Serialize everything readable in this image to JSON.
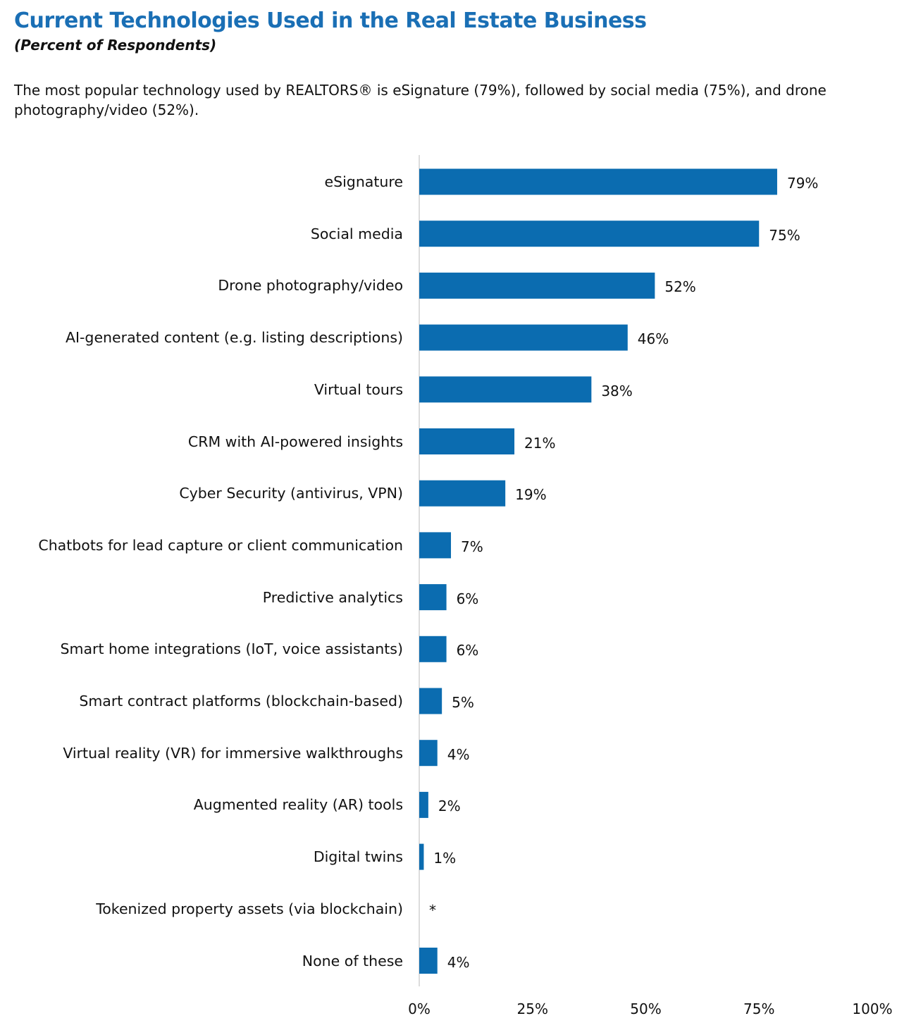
{
  "chart_data": {
    "type": "bar",
    "orientation": "horizontal",
    "title": "Current Technologies Used in the Real Estate Business",
    "subtitle": "(Percent of Respondents)",
    "description": "The most popular technology used by REALTORS® is eSignature (79%), followed by social media (75%), and drone photography/video (52%).",
    "categories": [
      "eSignature",
      "Social media",
      "Drone photography/video",
      "AI-generated content (e.g. listing descriptions)",
      "Virtual tours",
      "CRM with AI-powered insights",
      "Cyber Security (antivirus, VPN)",
      "Chatbots for lead capture or client communication",
      "Predictive analytics",
      "Smart home integrations (IoT, voice assistants)",
      "Smart contract platforms (blockchain-based)",
      "Virtual reality (VR) for immersive walkthroughs",
      "Augmented reality (AR) tools",
      "Digital twins",
      "Tokenized property assets (via blockchain)",
      "None of these"
    ],
    "values": [
      79,
      75,
      52,
      46,
      38,
      21,
      19,
      7,
      6,
      6,
      5,
      4,
      2,
      1,
      null,
      4
    ],
    "value_labels": [
      "79%",
      "75%",
      "52%",
      "46%",
      "38%",
      "21%",
      "19%",
      "7%",
      "6%",
      "6%",
      "5%",
      "4%",
      "2%",
      "1%",
      "*",
      "4%"
    ],
    "color": "#0b6cb0",
    "xlim": [
      0,
      100
    ],
    "xticks": [
      {
        "value": 0,
        "label": "0%"
      },
      {
        "value": 25,
        "label": "25%"
      },
      {
        "value": 50,
        "label": "50%"
      },
      {
        "value": 75,
        "label": "75%"
      },
      {
        "value": 100,
        "label": "100%"
      }
    ],
    "grid": false
  }
}
